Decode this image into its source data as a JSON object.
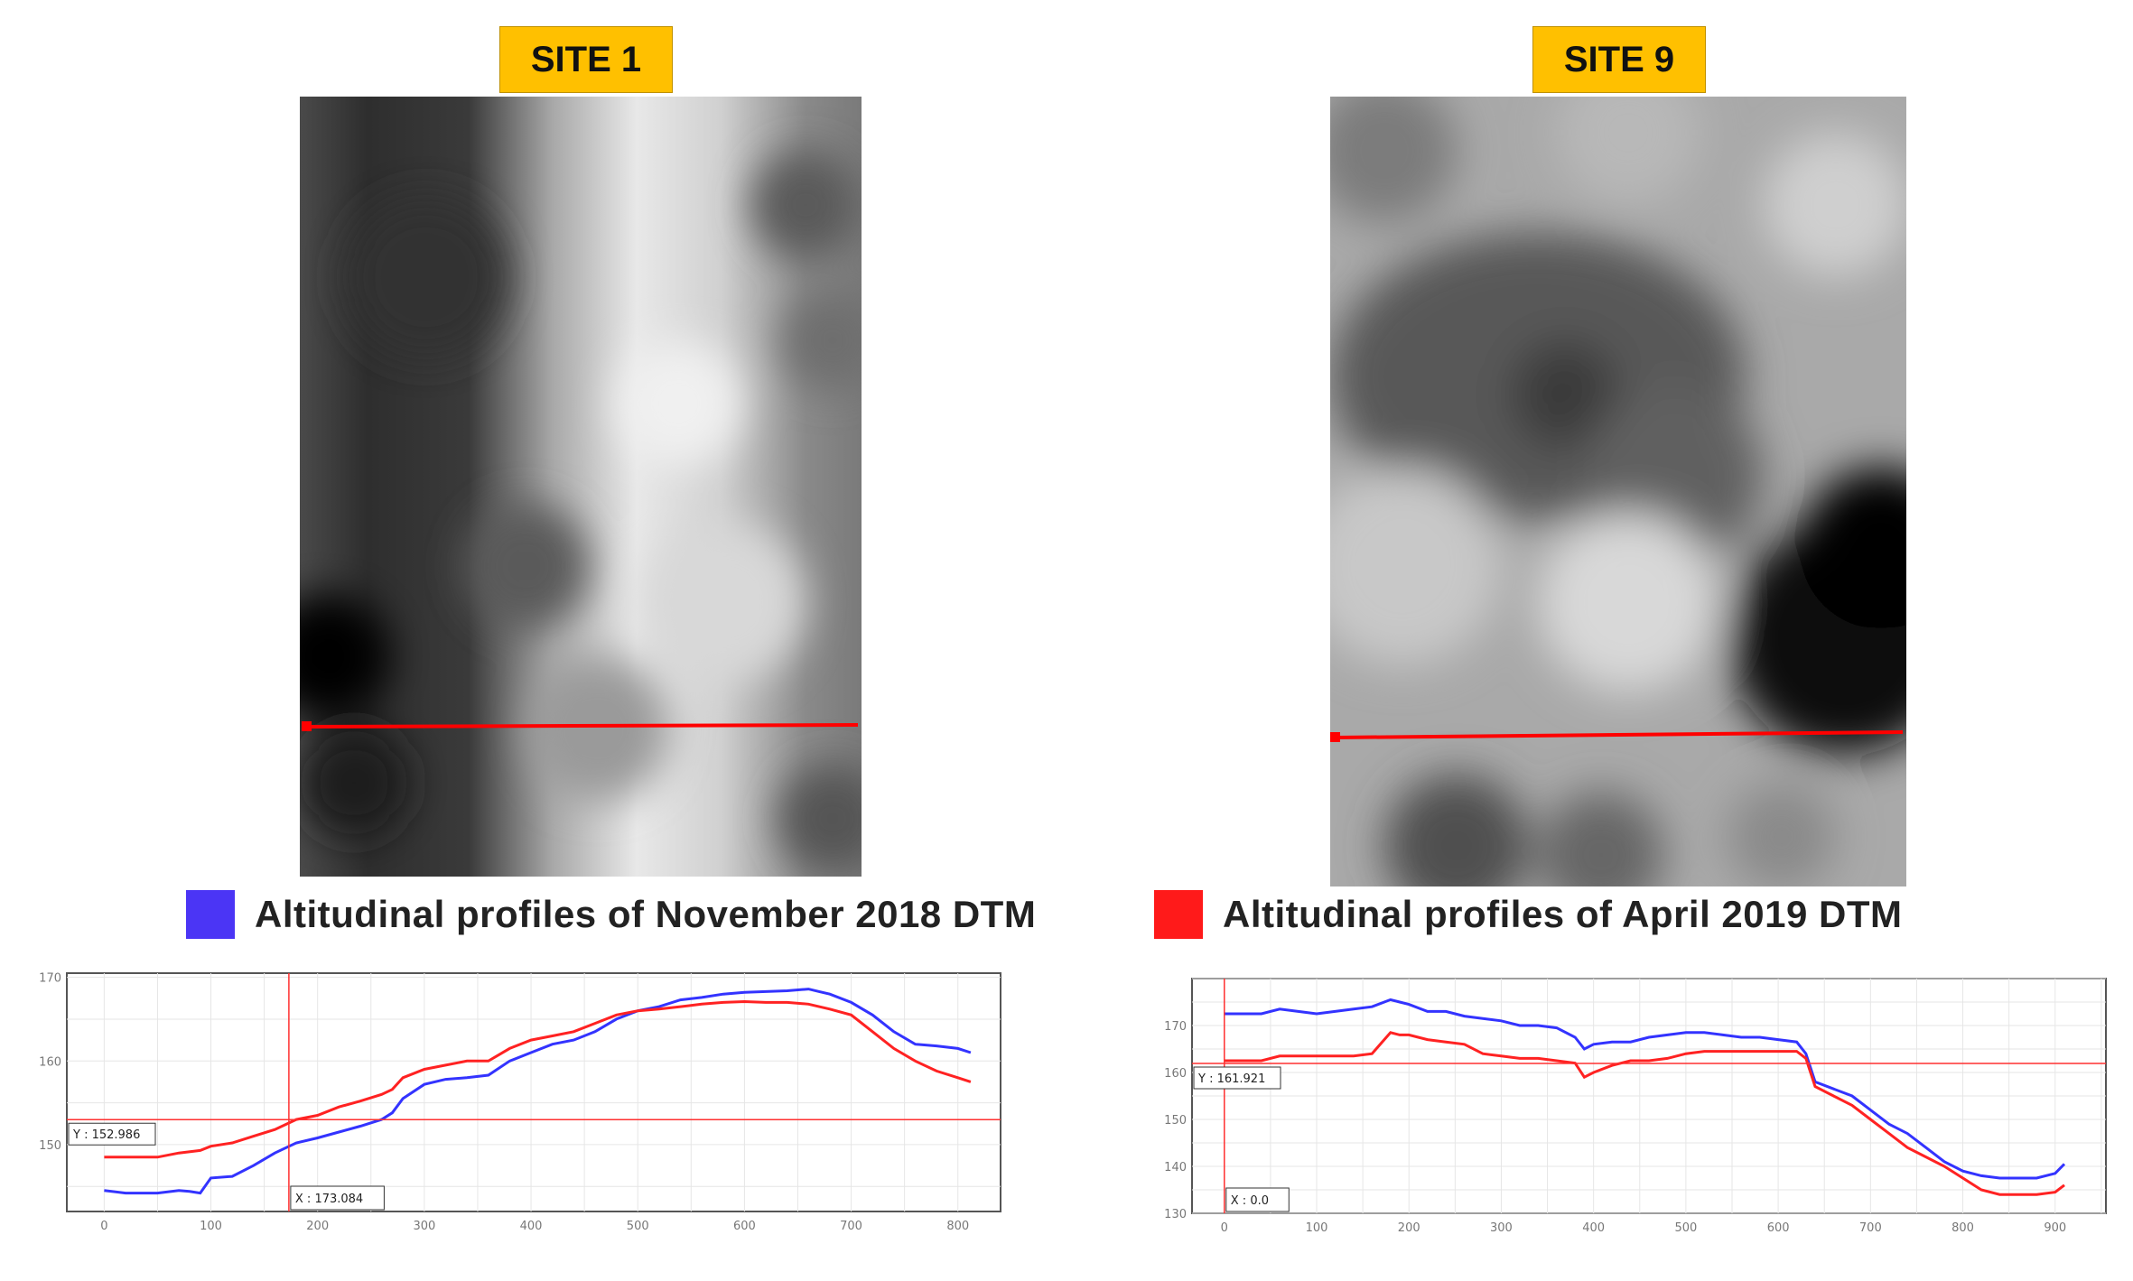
{
  "site1": {
    "label": "SITE 1"
  },
  "site9": {
    "label": "SITE 9"
  },
  "legend": {
    "november": {
      "label": "Altitudinal  profiles  of  November  2018 DTM",
      "color": "#4b35f5"
    },
    "april": {
      "label": "Altitudinal  profiles  of  April  2019 DTM",
      "color": "#ff1a1a"
    }
  },
  "chart_data": [
    {
      "type": "line",
      "title": "",
      "xlabel": "",
      "ylabel": "",
      "xlim": [
        -35,
        840
      ],
      "ylim": [
        142,
        170.5
      ],
      "x_ticks": [
        0,
        100,
        200,
        300,
        400,
        500,
        600,
        700,
        800
      ],
      "y_ticks": [
        150,
        160,
        170
      ],
      "grid": true,
      "cursor": {
        "x": 173.084,
        "y": 152.986,
        "x_label": "X : 173.084",
        "y_label": "Y : 152.986"
      },
      "series": [
        {
          "color": "#3333ff",
          "x": [
            0,
            20,
            50,
            70,
            80,
            90,
            100,
            120,
            140,
            160,
            180,
            200,
            220,
            240,
            260,
            270,
            280,
            300,
            320,
            340,
            360,
            380,
            400,
            420,
            440,
            460,
            480,
            500,
            520,
            540,
            560,
            580,
            600,
            620,
            640,
            660,
            670,
            680,
            700,
            720,
            740,
            760,
            780,
            800,
            812
          ],
          "y": [
            144.5,
            144.2,
            144.2,
            144.5,
            144.4,
            144.2,
            146,
            146.2,
            147.5,
            149,
            150.2,
            150.8,
            151.5,
            152.2,
            153,
            153.8,
            155.5,
            157.2,
            157.8,
            158,
            158.3,
            160,
            161,
            162,
            162.5,
            163.5,
            165,
            166,
            166.5,
            167.3,
            167.6,
            168,
            168.2,
            168.3,
            168.4,
            168.6,
            168.3,
            168,
            167,
            165.5,
            163.5,
            162,
            161.8,
            161.5,
            161
          ]
        },
        {
          "color": "#ff2222",
          "x": [
            0,
            20,
            50,
            70,
            90,
            100,
            120,
            140,
            160,
            180,
            200,
            220,
            240,
            260,
            270,
            280,
            300,
            320,
            340,
            360,
            380,
            400,
            420,
            440,
            460,
            480,
            500,
            520,
            540,
            560,
            580,
            600,
            620,
            640,
            660,
            680,
            700,
            720,
            740,
            760,
            780,
            800,
            812
          ],
          "y": [
            148.5,
            148.5,
            148.5,
            149,
            149.3,
            149.8,
            150.2,
            151,
            151.8,
            153,
            153.5,
            154.5,
            155.2,
            156,
            156.6,
            158,
            159,
            159.5,
            160,
            160,
            161.5,
            162.5,
            163,
            163.5,
            164.5,
            165.5,
            166,
            166.2,
            166.5,
            166.8,
            167,
            167.1,
            167,
            167,
            166.8,
            166.2,
            165.5,
            163.5,
            161.5,
            160,
            158.8,
            158,
            157.5
          ]
        }
      ]
    },
    {
      "type": "line",
      "title": "",
      "xlabel": "",
      "ylabel": "",
      "xlim": [
        -35,
        955
      ],
      "ylim": [
        130,
        180
      ],
      "x_ticks": [
        0,
        100,
        200,
        300,
        400,
        500,
        600,
        700,
        800,
        900
      ],
      "y_ticks": [
        130,
        140,
        150,
        160,
        170
      ],
      "y_tick_labels": [
        "130",
        "140",
        "150",
        "160",
        "170"
      ],
      "grid": true,
      "cursor": {
        "x": 0.0,
        "y": 161.921,
        "x_label": "X : 0.0",
        "y_label": "Y : 161.921"
      },
      "series": [
        {
          "color": "#3333ff",
          "x": [
            0,
            40,
            60,
            80,
            100,
            120,
            140,
            160,
            180,
            190,
            200,
            220,
            240,
            260,
            280,
            300,
            320,
            340,
            360,
            380,
            390,
            400,
            420,
            440,
            460,
            480,
            500,
            520,
            540,
            560,
            580,
            600,
            620,
            630,
            640,
            660,
            680,
            700,
            720,
            740,
            760,
            780,
            800,
            820,
            840,
            860,
            880,
            900,
            910
          ],
          "y": [
            172.5,
            172.5,
            173.5,
            173,
            172.5,
            173,
            173.5,
            174,
            175.5,
            175,
            174.5,
            173,
            173,
            172,
            171.5,
            171,
            170,
            170,
            169.5,
            167.5,
            165,
            166,
            166.5,
            166.5,
            167.5,
            168,
            168.5,
            168.5,
            168,
            167.5,
            167.5,
            167,
            166.5,
            164,
            158,
            156.5,
            155,
            152,
            149,
            147,
            144,
            141,
            139,
            138,
            137.5,
            137.5,
            137.5,
            138.5,
            140.5
          ]
        },
        {
          "color": "#ff2222",
          "x": [
            0,
            40,
            60,
            80,
            100,
            120,
            140,
            160,
            180,
            190,
            200,
            220,
            240,
            260,
            280,
            300,
            320,
            340,
            360,
            380,
            390,
            400,
            420,
            440,
            460,
            480,
            500,
            520,
            540,
            560,
            580,
            600,
            620,
            630,
            640,
            660,
            680,
            700,
            720,
            740,
            760,
            780,
            800,
            820,
            840,
            860,
            880,
            900,
            910
          ],
          "y": [
            162.5,
            162.5,
            163.5,
            163.5,
            163.5,
            163.5,
            163.5,
            164,
            168.5,
            168,
            168,
            167,
            166.5,
            166,
            164,
            163.5,
            163,
            163,
            162.5,
            162,
            159,
            160,
            161.5,
            162.5,
            162.5,
            163,
            164,
            164.5,
            164.5,
            164.5,
            164.5,
            164.5,
            164.5,
            163,
            157,
            155,
            153,
            150,
            147,
            144,
            142,
            140,
            137.5,
            135,
            134,
            134,
            134,
            134.5,
            136
          ]
        }
      ]
    }
  ]
}
